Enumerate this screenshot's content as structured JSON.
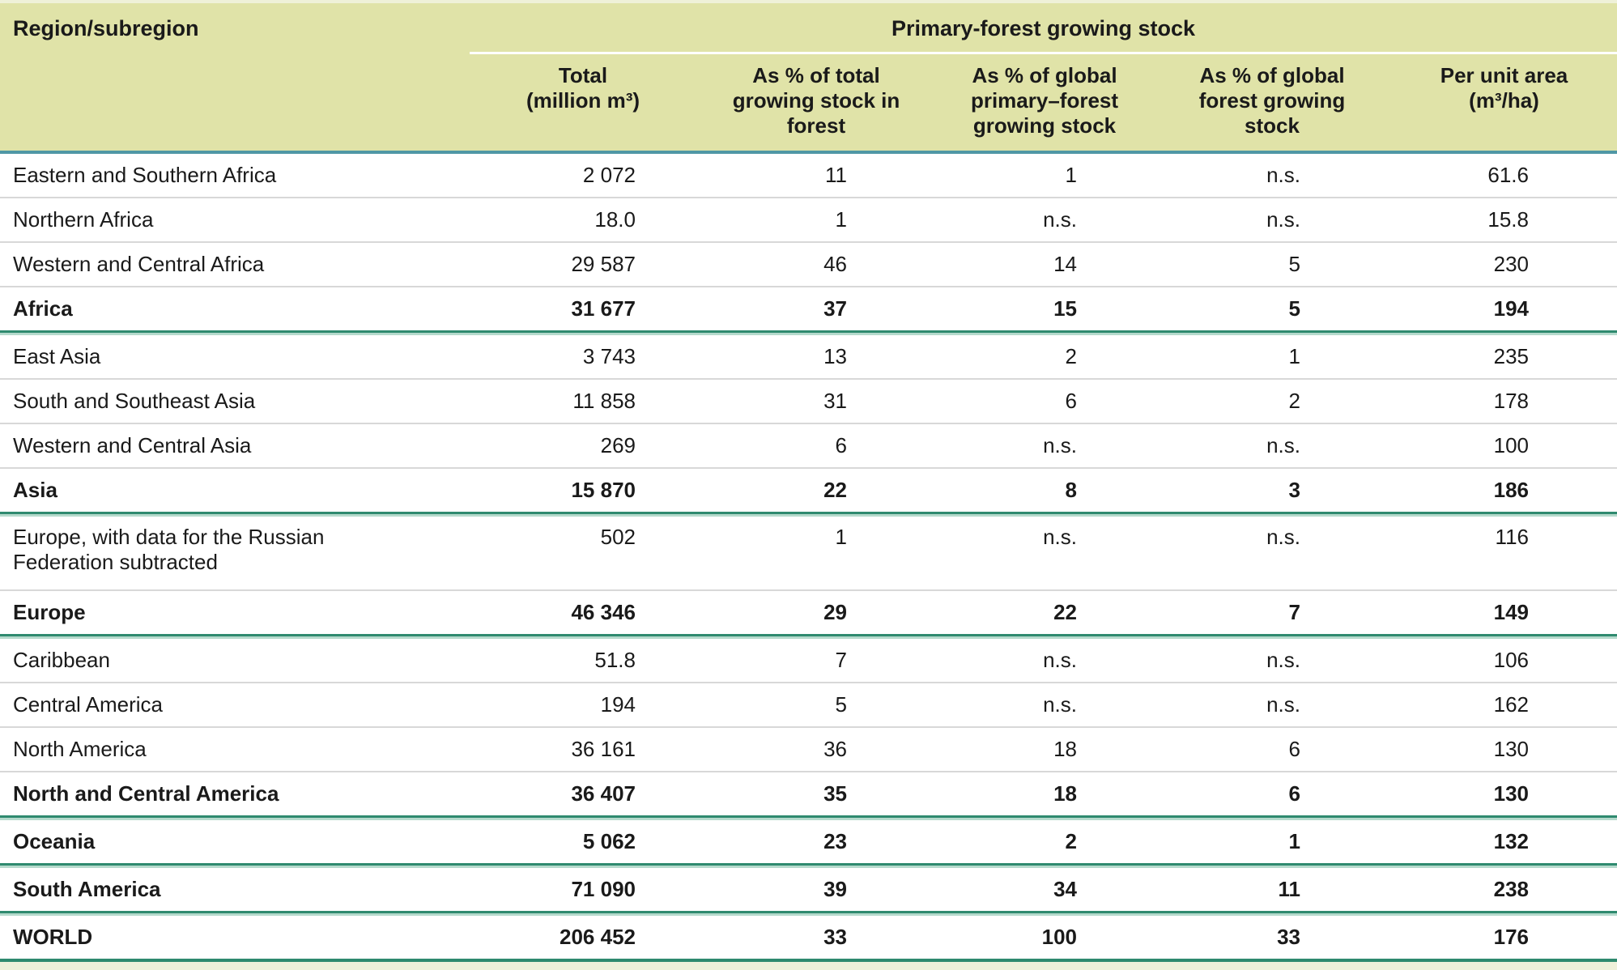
{
  "header": {
    "region_label": "Region/subregion",
    "span_label": "Primary-forest growing stock",
    "columns": [
      [
        "Total",
        "(million m³)"
      ],
      [
        "As % of total",
        "growing stock in",
        "forest"
      ],
      [
        "As % of global",
        "primary–forest",
        "growing stock"
      ],
      [
        "As % of global",
        "forest growing",
        "stock"
      ],
      [
        "Per unit area",
        "(m³/ha)"
      ]
    ]
  },
  "rows": [
    {
      "region": "Eastern and Southern Africa",
      "bold": false,
      "values": [
        "2 072",
        "11",
        "1",
        "n.s.",
        "61.6"
      ],
      "sep": "gray"
    },
    {
      "region": "Northern Africa",
      "bold": false,
      "values": [
        "18.0",
        "1",
        "n.s.",
        "n.s.",
        "15.8"
      ],
      "sep": "gray"
    },
    {
      "region": "Western and Central Africa",
      "bold": false,
      "values": [
        "29 587",
        "46",
        "14",
        "5",
        "230"
      ],
      "sep": "gray"
    },
    {
      "region": "Africa",
      "bold": true,
      "values": [
        "31 677",
        "37",
        "15",
        "5",
        "194"
      ],
      "sep": "green"
    },
    {
      "region": "East Asia",
      "bold": false,
      "values": [
        "3 743",
        "13",
        "2",
        "1",
        "235"
      ],
      "sep": "gray"
    },
    {
      "region": "South and Southeast Asia",
      "bold": false,
      "values": [
        "11 858",
        "31",
        "6",
        "2",
        "178"
      ],
      "sep": "gray"
    },
    {
      "region": "Western and Central Asia",
      "bold": false,
      "values": [
        "269",
        "6",
        "n.s.",
        "n.s.",
        "100"
      ],
      "sep": "gray"
    },
    {
      "region": "Asia",
      "bold": true,
      "values": [
        "15 870",
        "22",
        "8",
        "3",
        "186"
      ],
      "sep": "green"
    },
    {
      "region": [
        "Europe, with data for the Russian",
        "Federation subtracted"
      ],
      "bold": false,
      "tall": true,
      "values": [
        "502",
        "1",
        "n.s.",
        "n.s.",
        "116"
      ],
      "sep": "gray"
    },
    {
      "region": "Europe",
      "bold": true,
      "values": [
        "46 346",
        "29",
        "22",
        "7",
        "149"
      ],
      "sep": "green"
    },
    {
      "region": "Caribbean",
      "bold": false,
      "values": [
        "51.8",
        "7",
        "n.s.",
        "n.s.",
        "106"
      ],
      "sep": "gray"
    },
    {
      "region": "Central America",
      "bold": false,
      "values": [
        "194",
        "5",
        "n.s.",
        "n.s.",
        "162"
      ],
      "sep": "gray"
    },
    {
      "region": "North America",
      "bold": false,
      "values": [
        "36 161",
        "36",
        "18",
        "6",
        "130"
      ],
      "sep": "gray"
    },
    {
      "region": "North and Central America",
      "bold": true,
      "values": [
        "36 407",
        "35",
        "18",
        "6",
        "130"
      ],
      "sep": "green"
    },
    {
      "region": "Oceania",
      "bold": true,
      "values": [
        "5 062",
        "23",
        "2",
        "1",
        "132"
      ],
      "sep": "green"
    },
    {
      "region": "South America",
      "bold": true,
      "values": [
        "71 090",
        "39",
        "34",
        "11",
        "238"
      ],
      "sep": "green"
    },
    {
      "region": "WORLD",
      "bold": true,
      "values": [
        "206 452",
        "33",
        "100",
        "33",
        "176"
      ],
      "sep": "none"
    }
  ]
}
